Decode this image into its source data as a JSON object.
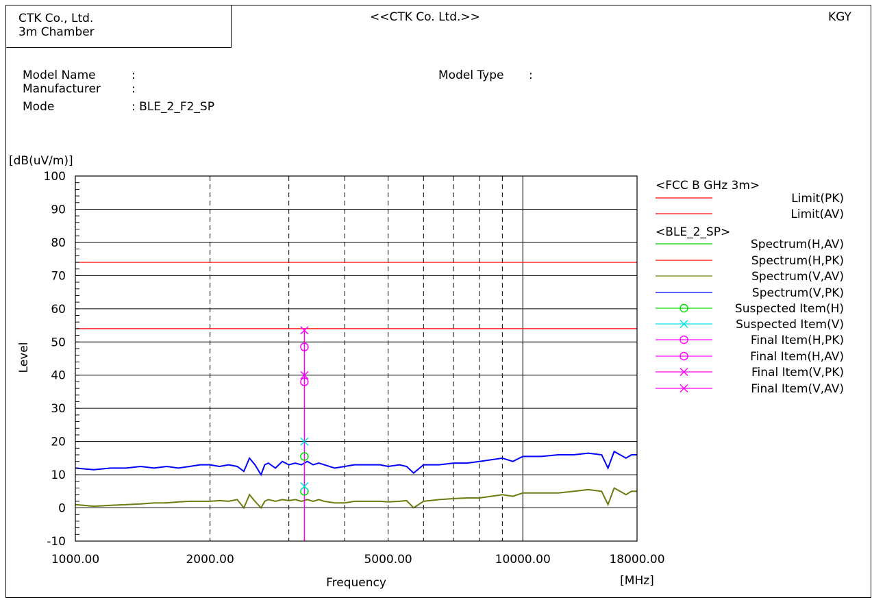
{
  "header": {
    "lab_line1": "CTK Co., Ltd.",
    "lab_line2": "3m Chamber",
    "center_title": "<<CTK Co. Ltd.>>",
    "operator": "KGY"
  },
  "info": {
    "model_name_label": "Model Name",
    "model_name_value": ":",
    "manufacturer_label": "Manufacturer",
    "manufacturer_value": ":",
    "mode_label": "Mode",
    "mode_value": ": BLE_2_F2_SP",
    "model_type_label": "Model Type",
    "model_type_value": ":"
  },
  "chart_data": {
    "type": "line",
    "yunit": "[dB(uV/m)]",
    "ylabel": "Level",
    "xlabel": "Frequency",
    "xunit": "[MHz]",
    "xscale": "log",
    "xlim": [
      1000,
      18000
    ],
    "ylim": [
      -10,
      100
    ],
    "y_ticks": [
      100,
      90,
      80,
      70,
      60,
      50,
      40,
      30,
      20,
      10,
      0,
      -10
    ],
    "x_tick_labels": [
      "1000.00",
      "2000.00",
      "5000.00",
      "10000.00",
      "18000.00"
    ],
    "x_tick_values": [
      1000,
      2000,
      5000,
      10000,
      18000
    ],
    "x_minor_grid": [
      3000,
      4000,
      6000,
      7000,
      8000,
      9000
    ],
    "limits_group": "<FCC B GHz 3m>",
    "data_group": "<BLE_2_SP>",
    "legend": [
      {
        "label": "Limit(PK)",
        "color": "#ff0000",
        "marker": "none"
      },
      {
        "label": "Limit(AV)",
        "color": "#ff0000",
        "marker": "none"
      },
      {
        "label": "Spectrum(H,AV)",
        "color": "#00cc00",
        "marker": "none"
      },
      {
        "label": "Spectrum(H,PK)",
        "color": "#ff0000",
        "marker": "none"
      },
      {
        "label": "Spectrum(V,AV)",
        "color": "#6b7d10",
        "marker": "none"
      },
      {
        "label": "Spectrum(V,PK)",
        "color": "#0000ff",
        "marker": "none"
      },
      {
        "label": "Suspected Item(H)",
        "color": "#00dd00",
        "marker": "circle"
      },
      {
        "label": "Suspected Item(V)",
        "color": "#00e0e0",
        "marker": "cross"
      },
      {
        "label": "Final Item(H,PK)",
        "color": "#ff00ff",
        "marker": "circle"
      },
      {
        "label": "Final Item(H,AV)",
        "color": "#ff00ff",
        "marker": "circle"
      },
      {
        "label": "Final Item(V,PK)",
        "color": "#ff00ff",
        "marker": "cross"
      },
      {
        "label": "Final Item(V,AV)",
        "color": "#ff00ff",
        "marker": "cross"
      }
    ],
    "limit_lines": [
      {
        "name": "Limit(PK)",
        "value": 74
      },
      {
        "name": "Limit(AV)",
        "value": 54
      }
    ],
    "spectrum_pk": {
      "x": [
        1000,
        1100,
        1200,
        1300,
        1400,
        1500,
        1600,
        1700,
        1800,
        1900,
        2000,
        2100,
        2200,
        2300,
        2380,
        2450,
        2520,
        2600,
        2650,
        2700,
        2800,
        2900,
        3000,
        3100,
        3200,
        3300,
        3400,
        3500,
        3600,
        3800,
        4000,
        4200,
        4500,
        4800,
        5000,
        5300,
        5500,
        5700,
        6000,
        6500,
        7000,
        7500,
        8000,
        8500,
        9000,
        9500,
        10000,
        11000,
        12000,
        13000,
        14000,
        15000,
        15500,
        16000,
        16500,
        17000,
        17500,
        18000
      ],
      "y": [
        12,
        11.5,
        12,
        12,
        12.5,
        12,
        12.5,
        12,
        12.5,
        13,
        13,
        12.5,
        13,
        12.5,
        11,
        15,
        13,
        10,
        13,
        13.5,
        12,
        14,
        13,
        13.5,
        13,
        14,
        13,
        13.5,
        13,
        12,
        12.5,
        13,
        13,
        13,
        12.5,
        13,
        12.5,
        10.5,
        13,
        13,
        13.5,
        13.5,
        14,
        14.5,
        15,
        14,
        15.5,
        15.5,
        16,
        16,
        16.5,
        16,
        12,
        17,
        16,
        15,
        16,
        16
      ]
    },
    "spectrum_av": {
      "x": [
        1000,
        1100,
        1200,
        1300,
        1400,
        1500,
        1600,
        1700,
        1800,
        1900,
        2000,
        2100,
        2200,
        2300,
        2380,
        2450,
        2520,
        2600,
        2650,
        2700,
        2800,
        2900,
        3000,
        3100,
        3200,
        3300,
        3400,
        3500,
        3600,
        3800,
        4000,
        4200,
        4500,
        4800,
        5000,
        5300,
        5500,
        5700,
        6000,
        6500,
        7000,
        7500,
        8000,
        8500,
        9000,
        9500,
        10000,
        11000,
        12000,
        13000,
        14000,
        15000,
        15500,
        16000,
        16500,
        17000,
        17500,
        18000
      ],
      "y": [
        1,
        0.5,
        0.8,
        1,
        1.2,
        1.5,
        1.5,
        1.8,
        2,
        2,
        2,
        2.2,
        2,
        2.5,
        0,
        4,
        2,
        0,
        2,
        2.5,
        2,
        2.5,
        2.2,
        2.5,
        2,
        2.5,
        2,
        2.5,
        2,
        1.5,
        1.5,
        2,
        2,
        2,
        1.8,
        2,
        2.2,
        0,
        2,
        2.5,
        2.8,
        3,
        3,
        3.5,
        4,
        3.5,
        4.5,
        4.5,
        4.5,
        5,
        5.5,
        5,
        1,
        6,
        5,
        4,
        5,
        5
      ]
    },
    "final_items": {
      "x": 3250,
      "vertical_line_to": -10,
      "h_pk": 48.5,
      "h_av": 38,
      "v_pk": 53.5,
      "v_av": 40
    },
    "suspected_items": {
      "x": 3250,
      "h_pk": 15.5,
      "h_av": 5,
      "v_pk": 20,
      "v_av": 6.5
    }
  }
}
